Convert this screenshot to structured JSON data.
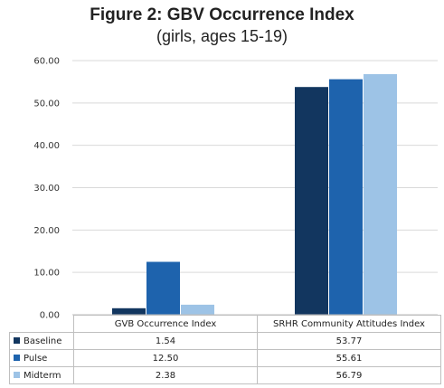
{
  "chart_data": {
    "type": "bar",
    "title": "Figure 2: GBV Occurrence Index",
    "subtitle": "(girls, ages 15-19)",
    "categories": [
      "GVB Occurrence Index",
      "SRHR Community Attitudes Index"
    ],
    "series": [
      {
        "name": "Baseline",
        "values": [
          1.54,
          53.77
        ],
        "labels": [
          "1.54",
          "53.77"
        ],
        "color": "#12365f"
      },
      {
        "name": "Pulse",
        "values": [
          12.5,
          55.61
        ],
        "labels": [
          "12.50",
          "55.61"
        ],
        "color": "#1e63ad"
      },
      {
        "name": "Midterm",
        "values": [
          2.38,
          56.79
        ],
        "labels": [
          "2.38",
          "56.79"
        ],
        "color": "#9dc3e6"
      }
    ],
    "ylim": [
      0,
      60
    ],
    "yticks": [
      "0.00",
      "10.00",
      "20.00",
      "30.00",
      "40.00",
      "50.00",
      "60.00"
    ],
    "grid": true,
    "legend": "data-table"
  }
}
